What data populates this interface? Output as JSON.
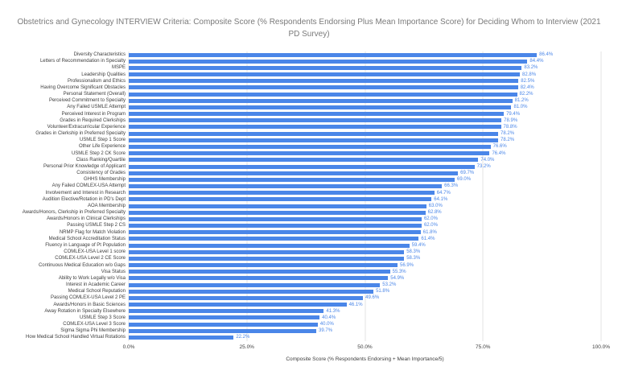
{
  "chart_data": {
    "type": "bar",
    "orientation": "horizontal",
    "title": "Obstetrics and Gynecology INTERVIEW Criteria: Composite Score (% Respondents Endorsing Plus Mean Importance Score) for Deciding Whom to Interview (2021 PD Survey)",
    "xlabel": "Composite Score (% Respondents Endorsing + Mean Importance/5)",
    "xlim": [
      0,
      100
    ],
    "grid": true,
    "legend": "none",
    "bar_color": "#4a86e8",
    "value_label_color": "#4a86e8",
    "title_color": "#7a7a7a",
    "xticks": [
      {
        "value": 0,
        "label": "0.0%"
      },
      {
        "value": 25,
        "label": "25.0%"
      },
      {
        "value": 50,
        "label": "50.0%"
      },
      {
        "value": 75,
        "label": "75.0%"
      },
      {
        "value": 100,
        "label": "100.0%"
      }
    ],
    "categories": [
      "Diversity Characteristics",
      "Letters of Recommendation in Specialty",
      "MSPE",
      "Leadership Qualities",
      "Professionalism and Ethics",
      "Having Overcome Significant Obstacles",
      "Personal Statement (Overall)",
      "Perceived Commitment to Specialty",
      "Any Failed USMLE Attempt",
      "Perceived Interest in Program",
      "Grades in Required Clerkships",
      "Volunteer/Extracurricular Experience",
      "Grades in Clerkship in Preferred Specialty",
      "USMLE Step 1 Score",
      "Other Life Experience",
      "USMLE Step 2 CK Score",
      "Class Ranking/Quartile",
      "Personal Prior Knowledge of Applicant",
      "Consistency of Grades",
      "GHHS Membership",
      "Any Failed COMLEX-USA Attempt",
      "Involvement and Interest in Research",
      "Audition Elective/Rotation in PD's Dept",
      "AOA Membership",
      "Awards/Honors, Clerkship in Preferred Specialty",
      "Awards/Honors in Clinical Clerkships",
      "Passing USMLE Step 2 CS",
      "NRMP Flag for Match Violation",
      "Medical School Accreditation Status",
      "Fluency in Language of Pt Population",
      "COMLEX-USA Level 1 score",
      "COMLEX-USA Level 2 CE Score",
      "Continuous Medical Education w/o Gaps",
      "Visa Status",
      "Ability to Work Legally w/o Visa",
      "Interest in Academic Career",
      "Medical School Reputation",
      "Passing COMLEX-USA Level 2 PE",
      "Awards/Honors in Basic Sciences",
      "Away Rotation in Specialty Elsewhere",
      "USMLE Step 3 Score",
      "COMLEX-USA Level 3 Score",
      "Sigma Sigma Phi Membership",
      "How Medical School Handled Virtual Rotations"
    ],
    "values": [
      86.4,
      84.4,
      83.2,
      82.8,
      82.5,
      82.4,
      82.2,
      81.2,
      81.0,
      79.4,
      78.9,
      78.8,
      78.2,
      78.2,
      76.6,
      76.4,
      74.0,
      73.2,
      69.7,
      69.0,
      66.3,
      64.7,
      64.1,
      63.0,
      62.8,
      62.0,
      62.0,
      61.8,
      61.4,
      59.4,
      58.3,
      58.3,
      56.9,
      55.3,
      54.9,
      53.2,
      51.8,
      49.6,
      46.1,
      41.3,
      40.4,
      40.0,
      39.7,
      22.2
    ],
    "value_suffix": "%"
  }
}
